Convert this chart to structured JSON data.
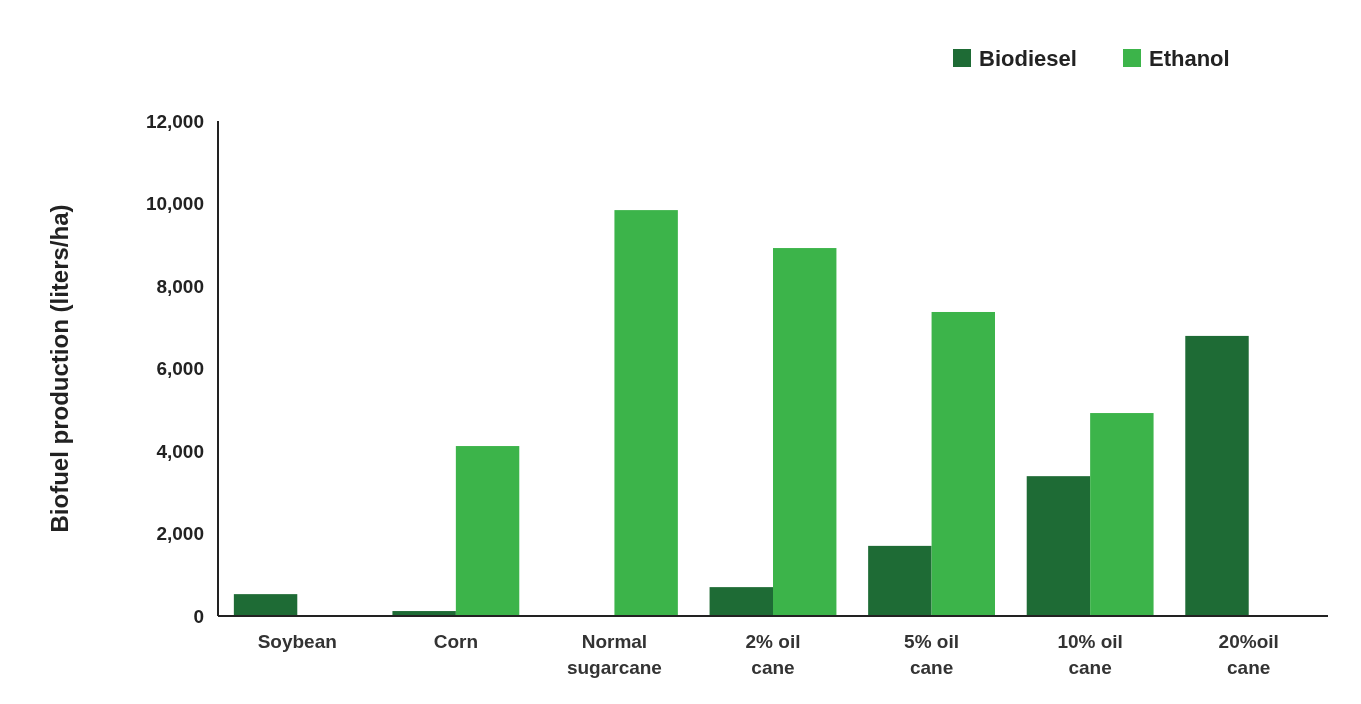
{
  "chart_data": {
    "type": "bar",
    "ylabel": "Biofuel production (liters/ha)",
    "categories": [
      "Soybean",
      "Corn",
      "Normal sugarcane",
      "2% oil cane",
      "5% oil cane",
      "10% oil cane",
      "20%oil cane"
    ],
    "series": [
      {
        "name": "Biodiesel",
        "color": "#1e6b35",
        "values": [
          530,
          120,
          null,
          700,
          1700,
          3390,
          6790
        ]
      },
      {
        "name": "Ethanol",
        "color": "#3cb44a",
        "values": [
          null,
          4120,
          9840,
          8920,
          7370,
          4920,
          null
        ]
      }
    ],
    "ylim": [
      0,
      12000
    ],
    "yticks": [
      {
        "value": 0,
        "label": "0"
      },
      {
        "value": 2000,
        "label": "2,000"
      },
      {
        "value": 4000,
        "label": "4,000"
      },
      {
        "value": 6000,
        "label": "6,000"
      },
      {
        "value": 8000,
        "label": "8,000"
      },
      {
        "value": 10000,
        "label": "10,000"
      },
      {
        "value": 12000,
        "label": "12,000"
      }
    ],
    "legend": "top right",
    "grid": false
  }
}
